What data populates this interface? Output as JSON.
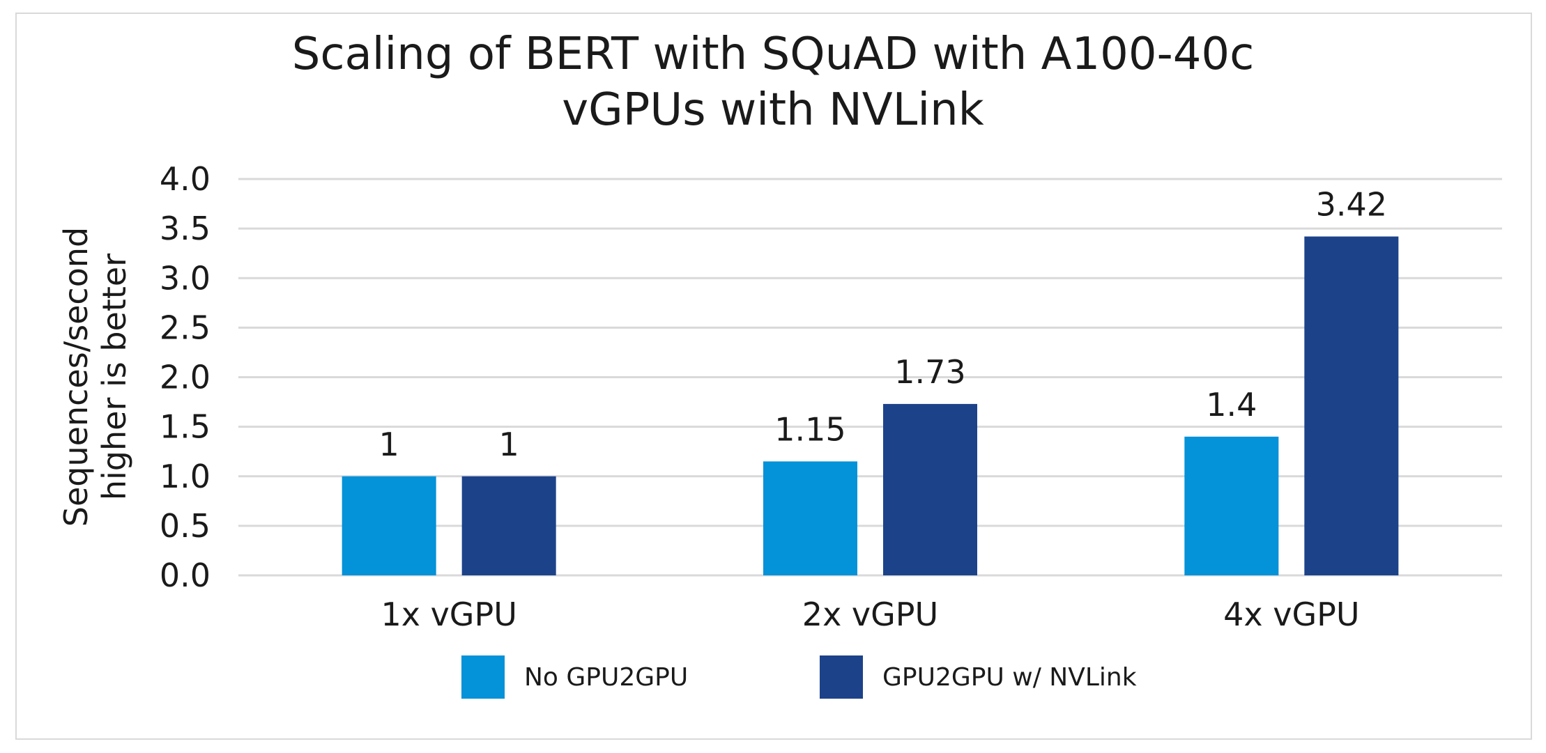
{
  "colors": {
    "series1": "#0492d9",
    "series2": "#1c428a",
    "grid": "#d9d9d9",
    "text": "#1a1a1a"
  },
  "chart_data": {
    "type": "bar",
    "title_lines": [
      "Scaling of BERT with SQuAD with A100-40c",
      "vGPUs with NVLink"
    ],
    "ylabel_lines": [
      "Sequences/second",
      "higher is better"
    ],
    "xlabel": "",
    "categories": [
      "1x vGPU",
      "2x vGPU",
      "4x vGPU"
    ],
    "series": [
      {
        "name": "No GPU2GPU",
        "values": [
          1,
          1.15,
          1.4
        ],
        "labels": [
          "1",
          "1.15",
          "1.4"
        ]
      },
      {
        "name": "GPU2GPU w/ NVLink",
        "values": [
          1,
          1.73,
          3.42
        ],
        "labels": [
          "1",
          "1.73",
          "3.42"
        ]
      }
    ],
    "ylim": [
      0,
      4
    ],
    "yticks": [
      "0.0",
      "0.5",
      "1.0",
      "1.5",
      "2.0",
      "2.5",
      "3.0",
      "3.5",
      "4.0"
    ],
    "grid": true,
    "legend_position": "bottom"
  }
}
